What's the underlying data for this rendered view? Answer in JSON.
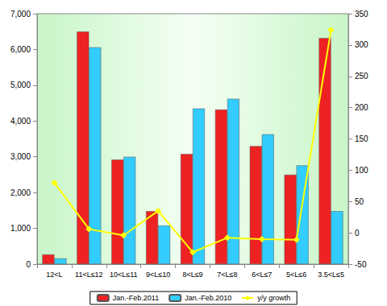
{
  "chart_data": {
    "type": "bar",
    "categories": [
      "12<L",
      "11<L≤12",
      "10<L≤11",
      "9<L≤10",
      "8<L≤9",
      "7<L≤8",
      "6<L≤7",
      "5<L≤6",
      "3.5<L≤5"
    ],
    "series": [
      {
        "name": "Jan.-Feb.2011",
        "type": "bar",
        "color": "#ee2222",
        "values": [
          270,
          6500,
          2920,
          1480,
          3080,
          4320,
          3300,
          2500,
          6320
        ]
      },
      {
        "name": "Jan.-Feb.2010",
        "type": "bar",
        "color": "#33ccff",
        "values": [
          160,
          6060,
          3000,
          1080,
          4350,
          4620,
          3630,
          2760,
          1480
        ]
      },
      {
        "name": "y/y growth",
        "type": "line",
        "color": "#ffff00",
        "marker": "diamond",
        "axis": "y2",
        "values": [
          80,
          6,
          -4,
          35,
          -31,
          -8,
          -10,
          -11,
          324
        ]
      }
    ],
    "ylim": [
      0,
      7000
    ],
    "yticks": [
      0,
      1000,
      2000,
      3000,
      4000,
      5000,
      6000,
      7000
    ],
    "y2lim": [
      -50,
      350
    ],
    "y2ticks": [
      -50,
      0,
      50,
      100,
      150,
      200,
      250,
      300,
      350
    ],
    "grid": false,
    "legend": "bottom"
  }
}
